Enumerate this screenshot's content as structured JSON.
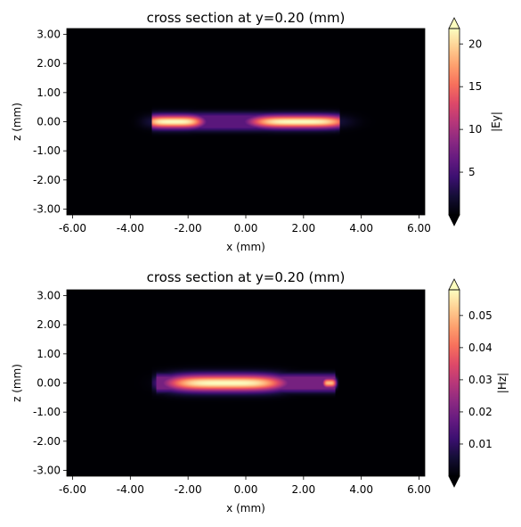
{
  "chart_data": [
    {
      "type": "heatmap",
      "title": "cross section at y=0.20 (mm)",
      "xlabel": "x (mm)",
      "ylabel": "z (mm)",
      "xlim": [
        -6.2,
        6.2
      ],
      "ylim": [
        -3.2,
        3.2
      ],
      "x_ticks": [
        -6,
        -4,
        -2,
        0,
        2,
        4,
        6
      ],
      "x_tick_labels": [
        "-6.00",
        "-4.00",
        "-2.00",
        "0.00",
        "2.00",
        "4.00",
        "6.00"
      ],
      "y_ticks": [
        -3,
        -2,
        -1,
        0,
        1,
        2,
        3
      ],
      "y_tick_labels": [
        "-3.00",
        "-2.00",
        "-1.00",
        "0.00",
        "1.00",
        "2.00",
        "3.00"
      ],
      "colorbar": {
        "label": "|Ey|",
        "min": 0.0,
        "max": 21.8,
        "ticks": [
          5,
          10,
          15,
          20
        ],
        "tick_labels": [
          "5",
          "10",
          "15",
          "20"
        ],
        "extend": "both",
        "colormap": "magma"
      },
      "field": {
        "strip_x_range": [
          -3.1,
          3.1
        ],
        "strip_z_range": [
          -0.22,
          0.22
        ],
        "hotspots": [
          {
            "x": -2.5,
            "z": 0.0,
            "sx": 0.9,
            "sz": 0.16,
            "value": 21.8
          },
          {
            "x": 1.85,
            "z": 0.0,
            "sx": 1.5,
            "sz": 0.16,
            "value": 21.8
          }
        ],
        "baseline_value": 6.0
      }
    },
    {
      "type": "heatmap",
      "title": "cross section at y=0.20 (mm)",
      "xlabel": "x (mm)",
      "ylabel": "z (mm)",
      "xlim": [
        -6.2,
        6.2
      ],
      "ylim": [
        -3.2,
        3.2
      ],
      "x_ticks": [
        -6,
        -4,
        -2,
        0,
        2,
        4,
        6
      ],
      "x_tick_labels": [
        "-6.00",
        "-4.00",
        "-2.00",
        "0.00",
        "2.00",
        "4.00",
        "6.00"
      ],
      "y_ticks": [
        -3,
        -2,
        -1,
        0,
        1,
        2,
        3
      ],
      "y_tick_labels": [
        "-3.00",
        "-2.00",
        "-1.00",
        "0.00",
        "1.00",
        "2.00",
        "3.00"
      ],
      "colorbar": {
        "label": "|Hz|",
        "min": 0.0,
        "max": 0.058,
        "ticks": [
          0.01,
          0.02,
          0.03,
          0.04,
          0.05
        ],
        "tick_labels": [
          "0.01",
          "0.02",
          "0.03",
          "0.04",
          "0.05"
        ],
        "extend": "both",
        "colormap": "magma"
      },
      "field": {
        "strip_x_range": [
          -3.1,
          3.1
        ],
        "strip_z_range": [
          -0.22,
          0.22
        ],
        "hotspots": [
          {
            "x": -0.7,
            "z": 0.0,
            "sx": 1.8,
            "sz": 0.2,
            "value": 0.058
          },
          {
            "x": 2.9,
            "z": 0.0,
            "sx": 0.2,
            "sz": 0.12,
            "value": 0.05
          }
        ],
        "baseline_value": 0.02
      }
    }
  ]
}
